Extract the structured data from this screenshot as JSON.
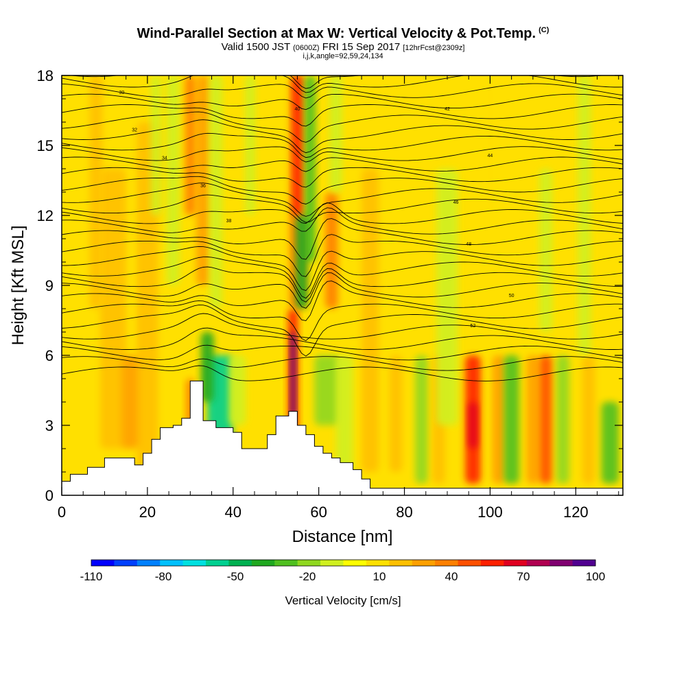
{
  "header": {
    "title": "Wind-Parallel Section at Max W: Vertical Velocity & Pot.Temp.",
    "title_mark": "(C)",
    "subtitle_prefix": "Valid 1500 JST",
    "subtitle_zulu": "(0600Z)",
    "subtitle_date": "FRI 15 Sep 2017",
    "subtitle_fcst": "[12hrFcst@2309z]",
    "params": "i,j,k,angle=92,59,24,134"
  },
  "chart_data": {
    "type": "heatmap",
    "xlabel": "Distance [nm]",
    "ylabel": "Height [Kft MSL]",
    "xlim": [
      0,
      131
    ],
    "ylim": [
      0,
      18
    ],
    "x_ticks": [
      "0",
      "20",
      "40",
      "60",
      "80",
      "100",
      "120"
    ],
    "y_ticks": [
      "0",
      "3",
      "6",
      "9",
      "12",
      "15",
      "18"
    ],
    "colorbar": {
      "label": "Vertical Velocity [cm/s]",
      "tick_labels": [
        "-110",
        "-80",
        "-50",
        "-20",
        "10",
        "40",
        "70",
        "100"
      ],
      "levels": [
        -110,
        -100,
        -90,
        -80,
        -70,
        -60,
        -50,
        -40,
        -30,
        -20,
        -10,
        0,
        10,
        20,
        30,
        40,
        50,
        60,
        70,
        80,
        90,
        100
      ],
      "colors": [
        "#0000ff",
        "#0040ff",
        "#0080ff",
        "#00c0ff",
        "#00e0e0",
        "#00d090",
        "#00b050",
        "#20a820",
        "#50c020",
        "#90d820",
        "#d0f020",
        "#ffff00",
        "#ffe000",
        "#ffc000",
        "#ffa000",
        "#ff8000",
        "#ff5000",
        "#ff2000",
        "#e00020",
        "#b00050",
        "#800070",
        "#500090"
      ]
    },
    "terrain_kft": [
      [
        0,
        0.6
      ],
      [
        2,
        0.9
      ],
      [
        6,
        1.2
      ],
      [
        10,
        1.6
      ],
      [
        14,
        1.6
      ],
      [
        17,
        1.3
      ],
      [
        19,
        1.8
      ],
      [
        21,
        2.4
      ],
      [
        23,
        2.9
      ],
      [
        26,
        3.0
      ],
      [
        28,
        3.3
      ],
      [
        30,
        4.9
      ],
      [
        32,
        4.9
      ],
      [
        33,
        3.2
      ],
      [
        36,
        2.9
      ],
      [
        40,
        2.7
      ],
      [
        42,
        2.0
      ],
      [
        46,
        2.0
      ],
      [
        48,
        2.6
      ],
      [
        50,
        3.4
      ],
      [
        53,
        3.6
      ],
      [
        55,
        3.0
      ],
      [
        57,
        2.6
      ],
      [
        59,
        2.1
      ],
      [
        61,
        1.8
      ],
      [
        63,
        1.6
      ],
      [
        65,
        1.4
      ],
      [
        68,
        1.1
      ],
      [
        70,
        0.7
      ],
      [
        72,
        0.3
      ],
      [
        80,
        0.3
      ],
      [
        100,
        0.3
      ],
      [
        131,
        0.3
      ]
    ],
    "updraft_max_cm_s": 100,
    "downdraft_min_cm_s": -70,
    "contour_labels": [
      "30",
      "32",
      "34",
      "36",
      "38",
      "40",
      "42",
      "44",
      "46",
      "48",
      "50",
      "52",
      "54"
    ],
    "grid": false,
    "legend": "none"
  }
}
